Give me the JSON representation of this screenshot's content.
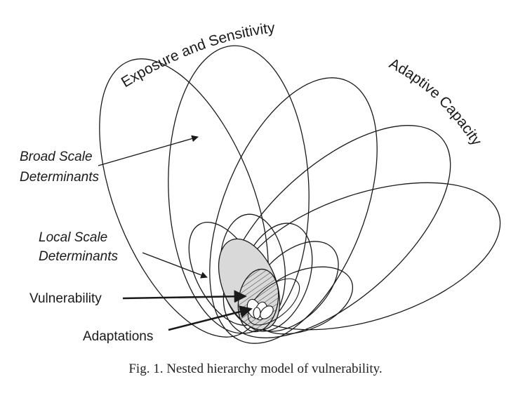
{
  "labels": {
    "exposure": "Exposure and Sensitivity",
    "adaptive": "Adaptive Capacity",
    "broad_line1": "Broad Scale",
    "broad_line2": "Determinants",
    "local_line1": "Local Scale",
    "local_line2": "Determinants",
    "vulnerability": "Vulnerability",
    "adaptations": "Adaptations"
  },
  "caption": "Fig. 1.  Nested hierarchy model of vulnerability.",
  "colors": {
    "stroke": "#1a1a1a",
    "vulnerability_fill": "#d9d9d9",
    "background": "#ffffff"
  }
}
